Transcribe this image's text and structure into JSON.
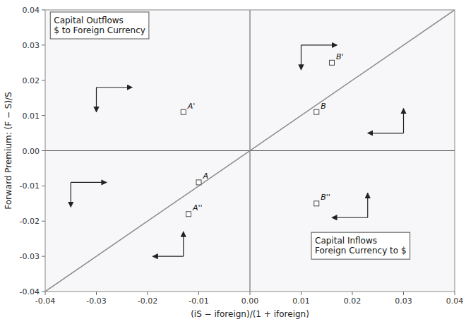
{
  "chart_data": {
    "type": "scatter",
    "xlabel": "(iS − iforeign)/(1 + iforeign)",
    "ylabel": "Forward Premium: (F − S)/S",
    "xlim": [
      -0.04,
      0.04
    ],
    "ylim": [
      -0.04,
      0.04
    ],
    "xticks": [
      -0.04,
      -0.03,
      -0.02,
      -0.01,
      {
        "value": 0.0,
        "label": "0.00"
      },
      0.01,
      0.02,
      0.03,
      0.04
    ],
    "yticks": [
      -0.04,
      -0.03,
      -0.02,
      -0.01,
      {
        "value": 0.0,
        "label": "0.00"
      },
      0.01,
      0.02,
      0.03,
      0.04
    ],
    "grid": false,
    "x": [
      -0.013,
      -0.01,
      -0.012,
      0.013,
      0.016,
      0.013
    ],
    "values": [
      0.011,
      -0.009,
      -0.018,
      0.011,
      0.025,
      -0.015
    ],
    "point_labels": [
      "A'",
      "A",
      "A''",
      "B",
      "B'",
      "B''"
    ],
    "annotations": [
      {
        "text": "Capital Outflows\n$ to Foreign Currency",
        "x": -0.039,
        "y": 0.038
      },
      {
        "text": "Capital Inflows\nForeign Currency to $",
        "x": 0.012,
        "y": -0.027
      }
    ],
    "arrow_groups": [
      {
        "corner_x": -0.03,
        "corner_y": 0.018,
        "h_dx": 0.007,
        "h_dy": 0.0,
        "v_dx": 0.0,
        "v_dy": -0.007
      },
      {
        "corner_x": -0.035,
        "corner_y": -0.009,
        "h_dx": 0.007,
        "h_dy": 0.0,
        "v_dx": 0.0,
        "v_dy": -0.007
      },
      {
        "corner_x": -0.013,
        "corner_y": -0.03,
        "h_dx": -0.006,
        "h_dy": 0.0,
        "v_dx": 0.0,
        "v_dy": 0.007
      },
      {
        "corner_x": 0.01,
        "corner_y": 0.03,
        "h_dx": 0.007,
        "h_dy": 0.0,
        "v_dx": 0.0,
        "v_dy": -0.007
      },
      {
        "corner_x": 0.03,
        "corner_y": 0.005,
        "h_dx": -0.007,
        "h_dy": 0.0,
        "v_dx": 0.0,
        "v_dy": 0.007
      },
      {
        "corner_x": 0.023,
        "corner_y": -0.019,
        "h_dx": -0.007,
        "h_dy": 0.0,
        "v_dx": 0.0,
        "v_dy": 0.007
      }
    ]
  }
}
